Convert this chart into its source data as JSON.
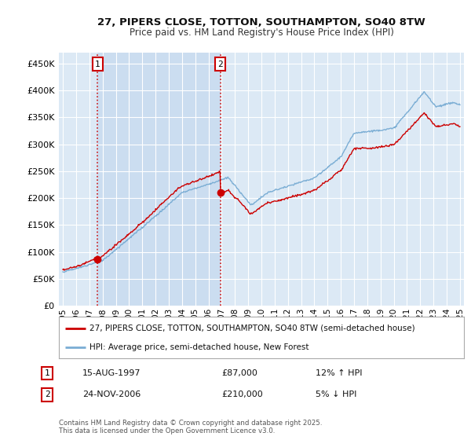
{
  "title_line1": "27, PIPERS CLOSE, TOTTON, SOUTHAMPTON, SO40 8TW",
  "title_line2": "Price paid vs. HM Land Registry's House Price Index (HPI)",
  "background_color": "#ffffff",
  "plot_bg_color": "#dce9f5",
  "shade_color": "#c5d8ee",
  "grid_color": "#ffffff",
  "red_line_color": "#cc0000",
  "blue_line_color": "#7aadd4",
  "sale1_date_num": 1997.62,
  "sale1_price": 87000,
  "sale1_label": "15-AUG-1997",
  "sale1_amount": "£87,000",
  "sale1_hpi": "12% ↑ HPI",
  "sale2_date_num": 2006.9,
  "sale2_price": 210000,
  "sale2_label": "24-NOV-2006",
  "sale2_amount": "£210,000",
  "sale2_hpi": "5% ↓ HPI",
  "legend_label1": "27, PIPERS CLOSE, TOTTON, SOUTHAMPTON, SO40 8TW (semi-detached house)",
  "legend_label2": "HPI: Average price, semi-detached house, New Forest",
  "footer": "Contains HM Land Registry data © Crown copyright and database right 2025.\nThis data is licensed under the Open Government Licence v3.0.",
  "yticks": [
    0,
    50000,
    100000,
    150000,
    200000,
    250000,
    300000,
    350000,
    400000,
    450000
  ],
  "ylim": [
    0,
    470000
  ],
  "xlim_start": 1994.7,
  "xlim_end": 2025.3
}
